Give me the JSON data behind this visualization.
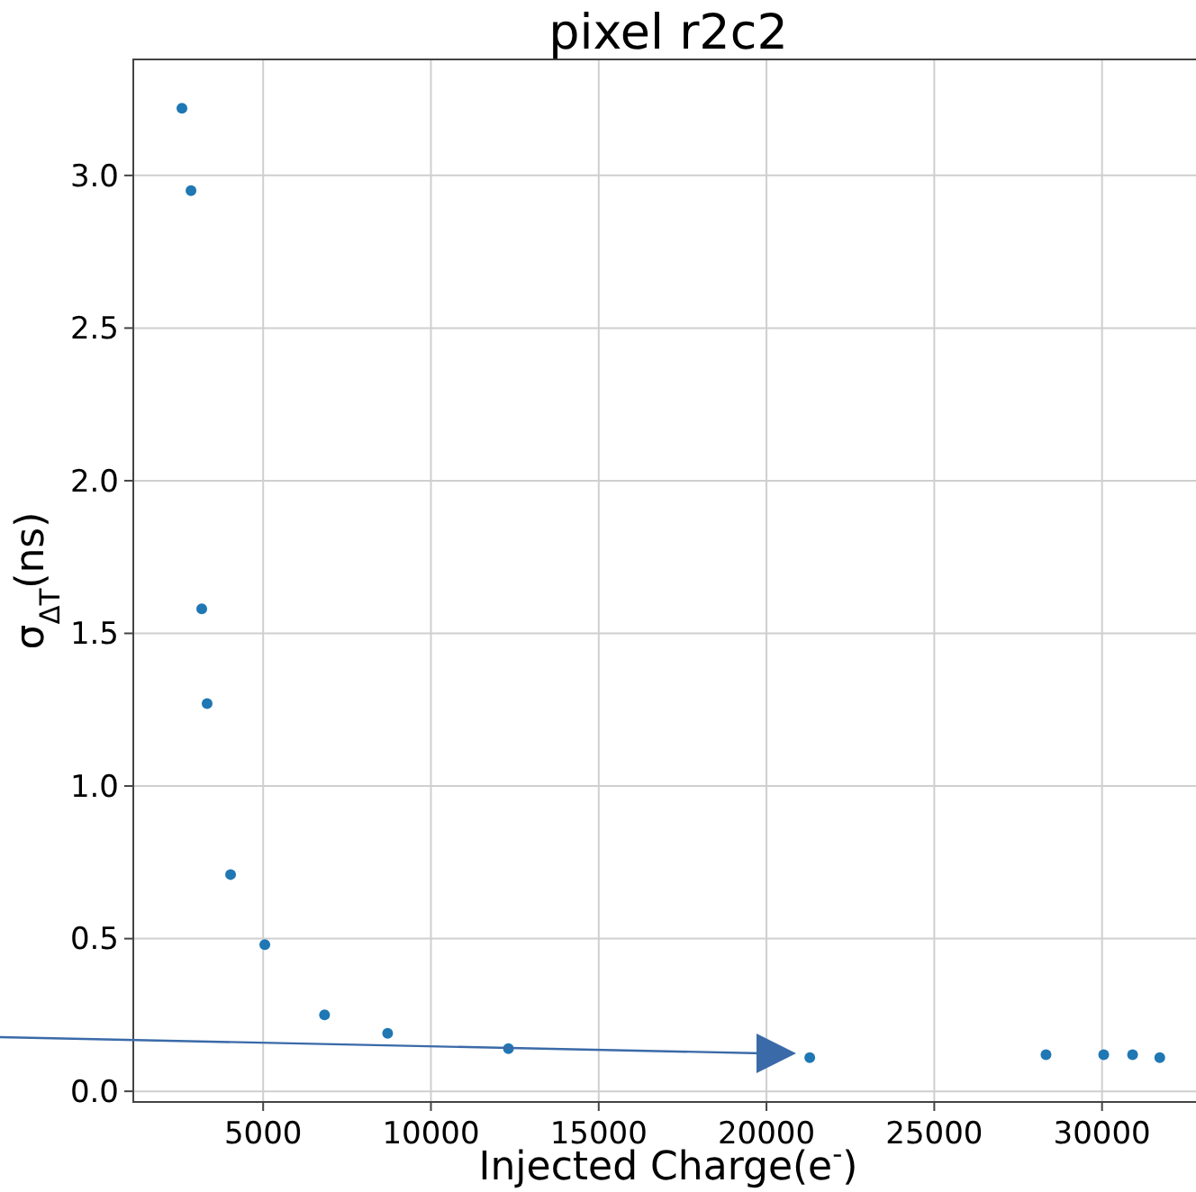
{
  "chart_data": {
    "type": "scatter",
    "title": "pixel r2c2",
    "xlabel": "Injected Charge(e$^{-}$)",
    "ylabel": "σ$_{ΔT}$(ns)",
    "x": [
      2580,
      2850,
      3170,
      3330,
      4030,
      5050,
      6830,
      8710,
      12310,
      21290,
      28330,
      30050,
      30910,
      31720
    ],
    "series": [
      {
        "color": "#1f77b4",
        "values": [
          3.22,
          2.95,
          1.58,
          1.27,
          0.71,
          0.48,
          0.25,
          0.19,
          0.14,
          0.11,
          0.12,
          0.12,
          0.12,
          0.11
        ]
      }
    ],
    "xlim": [
      1130,
      32800
    ],
    "xticks": [
      5000,
      10000,
      15000,
      20000,
      25000,
      30000
    ],
    "ylim": [
      -0.035,
      3.38
    ],
    "yticks": [
      {
        "value": 0,
        "label": "0.0"
      },
      {
        "value": 0.5,
        "label": "0.5"
      },
      {
        "value": 1,
        "label": "1.0"
      },
      {
        "value": 1.5,
        "label": "1.5"
      },
      {
        "value": 2,
        "label": "2.0"
      },
      {
        "value": 2.5,
        "label": "2.5"
      },
      {
        "value": 3,
        "label": "3.0"
      }
    ],
    "grid": true,
    "marker": "circle"
  }
}
